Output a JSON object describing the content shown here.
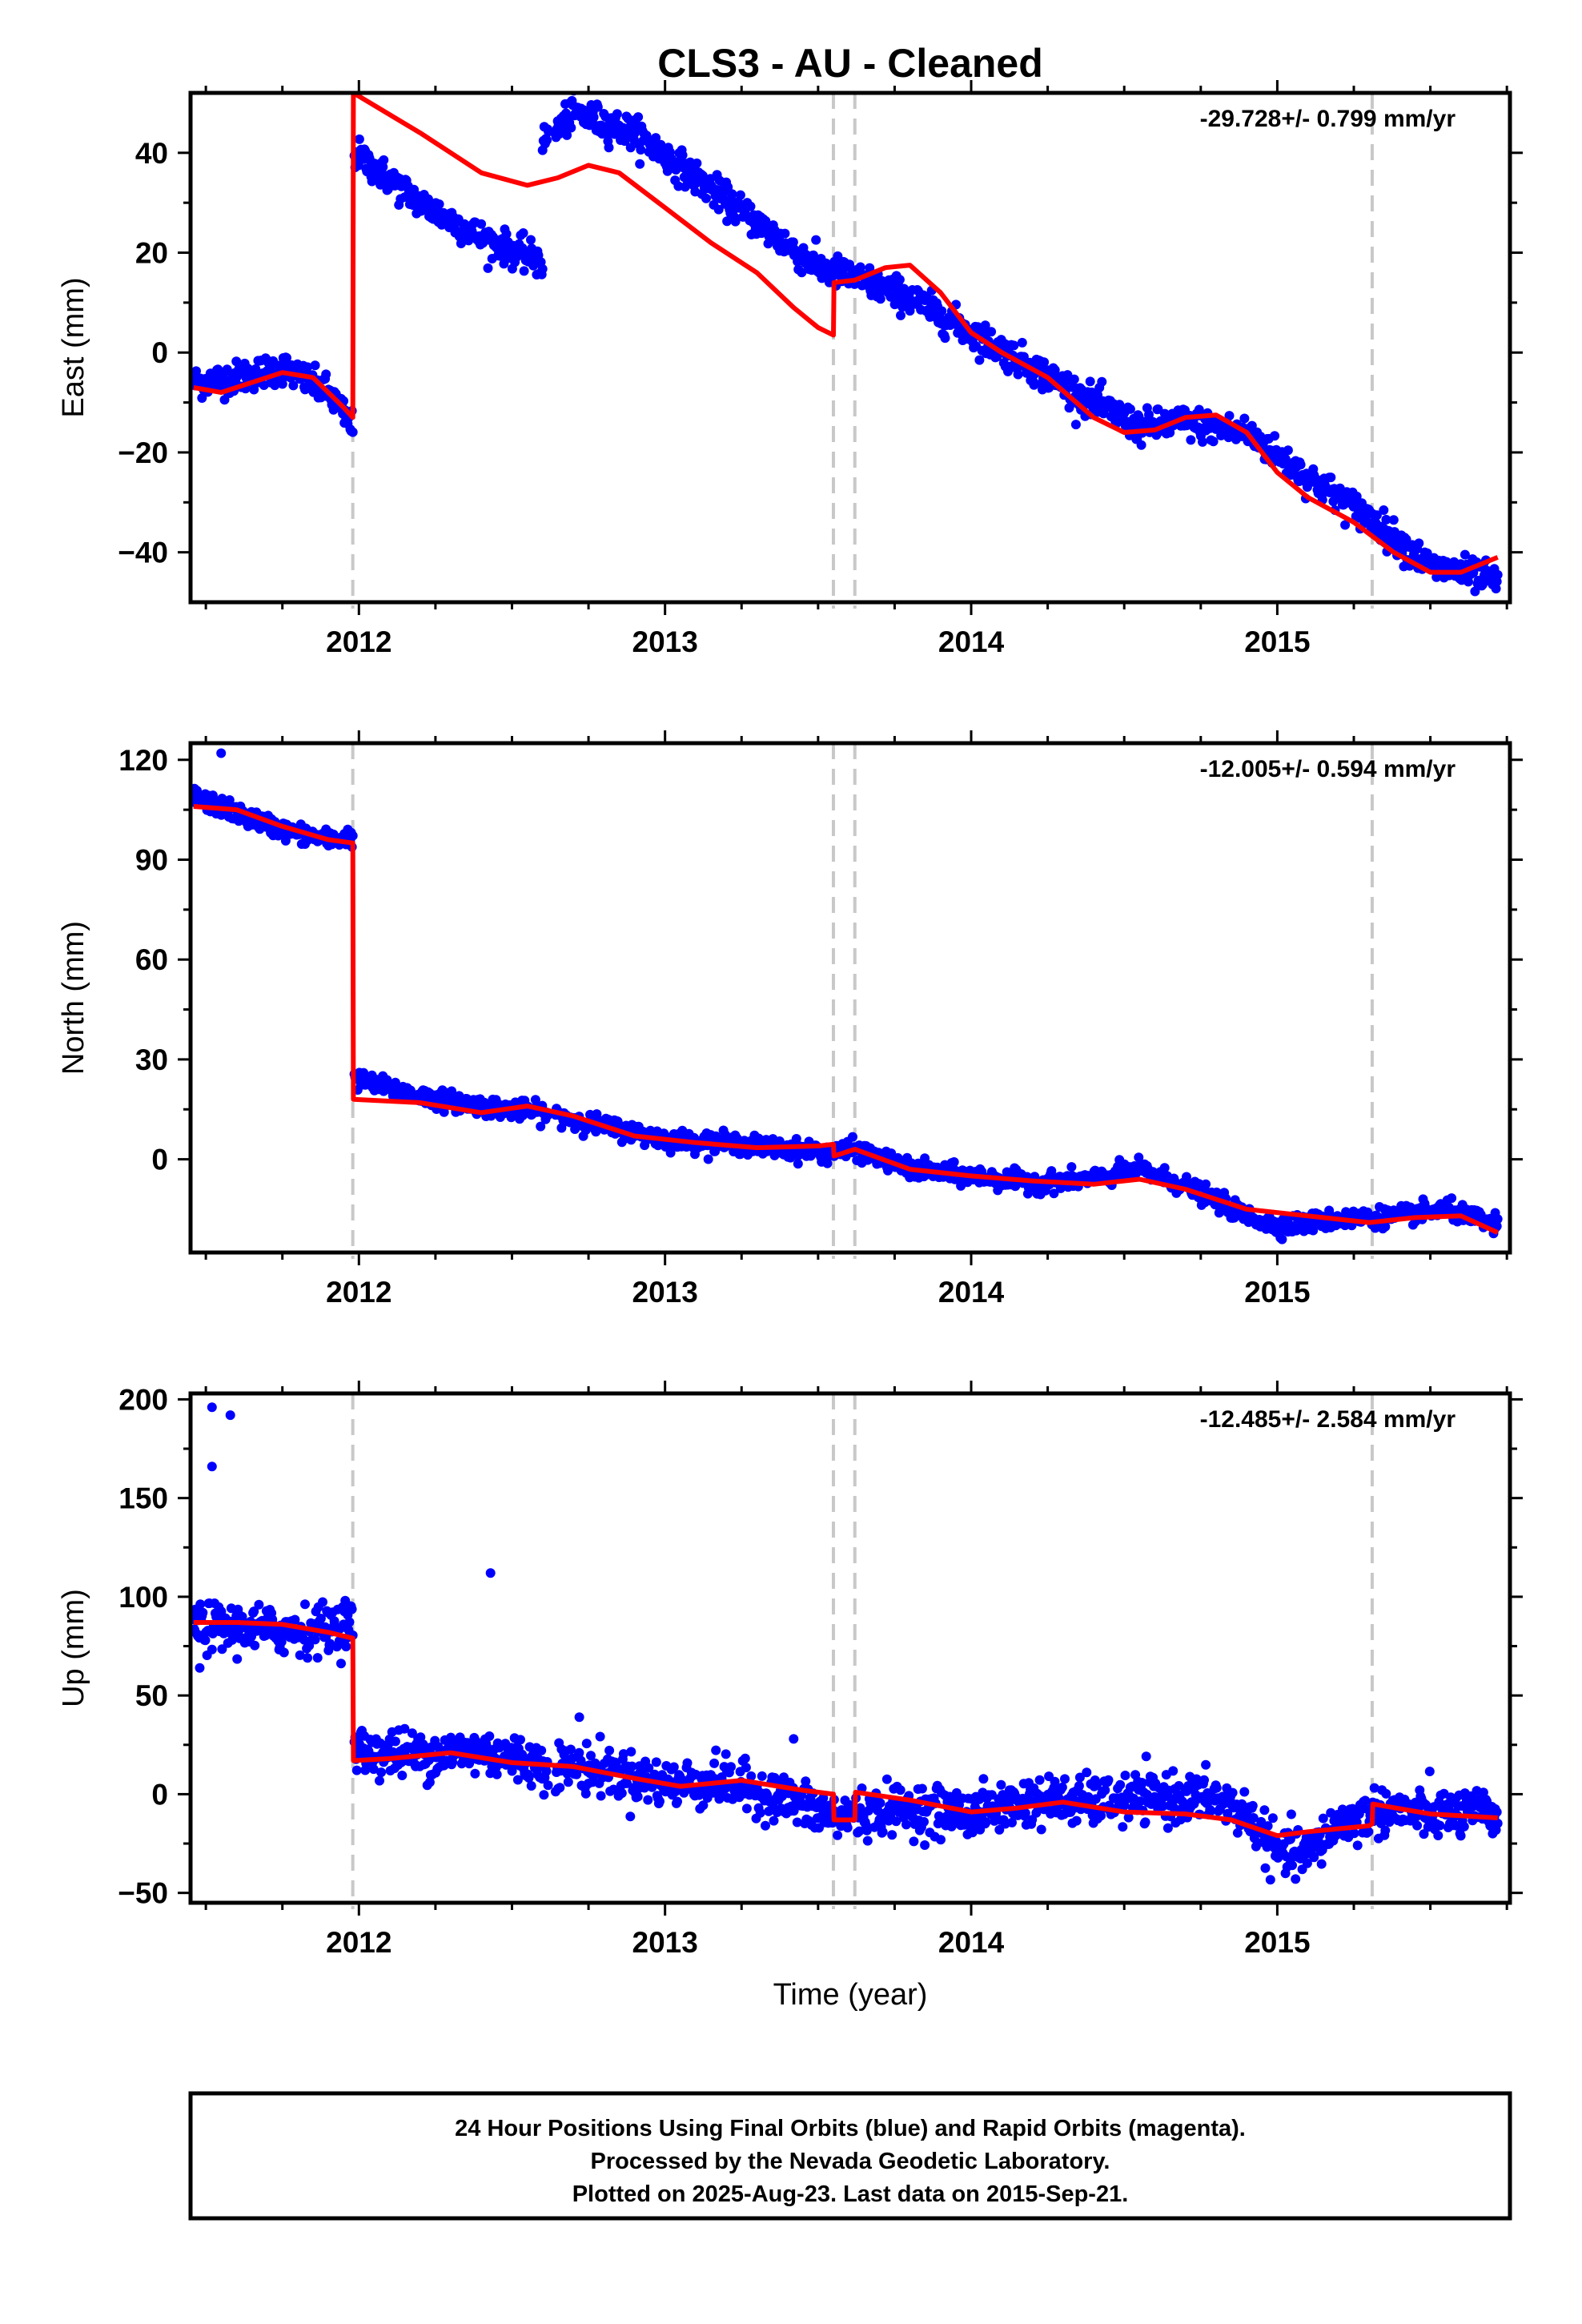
{
  "chart_data": {
    "title": "CLS3  - AU - Cleaned",
    "xlabel": "Time (year)",
    "xlim": [
      2011.45,
      2015.76
    ],
    "x_ticks": [
      2012,
      2013,
      2014,
      2015
    ],
    "x_tick_labels": [
      "2012",
      "2013",
      "2014",
      "2015"
    ],
    "breaks": [
      2011.98,
      2013.55,
      2013.62,
      2015.31
    ],
    "colors": {
      "data": "#0000ff",
      "model": "#ff0000",
      "breaks": "#c8c8c8"
    },
    "footer": {
      "line1": "24 Hour Positions Using Final Orbits (blue) and Rapid Orbits (magenta).",
      "line2": "Processed by the Nevada Geodetic Laboratory.",
      "line3": "Plotted on 2025-Aug-23. Last data on 2015-Sep-21."
    },
    "panels": [
      {
        "type": "scatter",
        "ylabel": "East (mm)",
        "ylim": [
          -50,
          52
        ],
        "y_ticks": [
          -40,
          -20,
          0,
          20,
          40
        ],
        "y_tick_labels": [
          "−40",
          "−20",
          "0",
          "20",
          "40"
        ],
        "rate_label": "-29.728+/- 0.799 mm/yr",
        "data_trend": [
          [
            2011.46,
            -6
          ],
          [
            2011.6,
            -5
          ],
          [
            2011.75,
            -3
          ],
          [
            2011.9,
            -8
          ],
          [
            2011.98,
            -15
          ],
          [
            2011.985,
            40
          ],
          [
            2012.2,
            30
          ],
          [
            2012.4,
            23
          ],
          [
            2012.6,
            18
          ],
          [
            2012.6,
            18
          ],
          [
            2012.6,
            42
          ],
          [
            2012.7,
            48
          ],
          [
            2012.9,
            44
          ],
          [
            2013.1,
            35
          ],
          [
            2013.3,
            26
          ],
          [
            2013.5,
            17
          ],
          [
            2013.62,
            15
          ],
          [
            2013.8,
            11
          ],
          [
            2014.0,
            4
          ],
          [
            2014.2,
            -3
          ],
          [
            2014.4,
            -10
          ],
          [
            2014.55,
            -15
          ],
          [
            2014.7,
            -14
          ],
          [
            2014.9,
            -16
          ],
          [
            2015.1,
            -25
          ],
          [
            2015.3,
            -33
          ],
          [
            2015.5,
            -43
          ],
          [
            2015.6,
            -44
          ],
          [
            2015.72,
            -46
          ]
        ],
        "data_noise": 1.6,
        "outliers": [],
        "model": [
          [
            2011.46,
            -7
          ],
          [
            2011.55,
            -8
          ],
          [
            2011.65,
            -6
          ],
          [
            2011.75,
            -4
          ],
          [
            2011.85,
            -5
          ],
          [
            2011.95,
            -11
          ],
          [
            2011.98,
            -13
          ],
          [
            2011.982,
            52
          ],
          [
            2012.2,
            44
          ],
          [
            2012.4,
            36
          ],
          [
            2012.55,
            33.5
          ],
          [
            2012.65,
            35
          ],
          [
            2012.75,
            37.5
          ],
          [
            2012.85,
            36
          ],
          [
            2013.0,
            29
          ],
          [
            2013.15,
            22
          ],
          [
            2013.3,
            16
          ],
          [
            2013.42,
            9
          ],
          [
            2013.5,
            5
          ],
          [
            2013.55,
            3.5
          ],
          [
            2013.552,
            14
          ],
          [
            2013.62,
            14.5
          ],
          [
            2013.72,
            17
          ],
          [
            2013.8,
            17.5
          ],
          [
            2013.9,
            12
          ],
          [
            2014.0,
            4
          ],
          [
            2014.1,
            0
          ],
          [
            2014.25,
            -5
          ],
          [
            2014.4,
            -13
          ],
          [
            2014.5,
            -16
          ],
          [
            2014.6,
            -15.5
          ],
          [
            2014.7,
            -13
          ],
          [
            2014.8,
            -12.5
          ],
          [
            2014.9,
            -16
          ],
          [
            2015.0,
            -24
          ],
          [
            2015.1,
            -29
          ],
          [
            2015.25,
            -34
          ],
          [
            2015.38,
            -40
          ],
          [
            2015.5,
            -44
          ],
          [
            2015.6,
            -44
          ],
          [
            2015.72,
            -41
          ]
        ]
      },
      {
        "type": "scatter",
        "ylabel": "North (mm)",
        "ylim": [
          -28,
          125
        ],
        "y_ticks": [
          0,
          30,
          60,
          90,
          120
        ],
        "y_tick_labels": [
          "0",
          "30",
          "60",
          "90",
          "120"
        ],
        "rate_label": "-12.005+/- 0.594 mm/yr",
        "data_trend": [
          [
            2011.46,
            109
          ],
          [
            2011.6,
            104
          ],
          [
            2011.75,
            99
          ],
          [
            2011.9,
            96
          ],
          [
            2011.98,
            97
          ],
          [
            2011.985,
            24
          ],
          [
            2012.2,
            19
          ],
          [
            2012.4,
            16
          ],
          [
            2012.6,
            14
          ],
          [
            2012.8,
            10
          ],
          [
            2013.0,
            6
          ],
          [
            2013.2,
            5
          ],
          [
            2013.4,
            3
          ],
          [
            2013.55,
            2
          ],
          [
            2013.62,
            3
          ],
          [
            2013.8,
            -3
          ],
          [
            2014.0,
            -5
          ],
          [
            2014.2,
            -7
          ],
          [
            2014.4,
            -6
          ],
          [
            2014.55,
            -3
          ],
          [
            2014.7,
            -8
          ],
          [
            2014.9,
            -17
          ],
          [
            2015.0,
            -20
          ],
          [
            2015.2,
            -18
          ],
          [
            2015.4,
            -17
          ],
          [
            2015.55,
            -15
          ],
          [
            2015.72,
            -20
          ]
        ],
        "data_noise": 1.4,
        "outliers": [
          [
            2011.55,
            122
          ]
        ],
        "model": [
          [
            2011.46,
            106
          ],
          [
            2011.6,
            105
          ],
          [
            2011.75,
            100
          ],
          [
            2011.9,
            96
          ],
          [
            2011.98,
            95
          ],
          [
            2011.982,
            18
          ],
          [
            2012.2,
            17
          ],
          [
            2012.4,
            14
          ],
          [
            2012.55,
            16
          ],
          [
            2012.7,
            13
          ],
          [
            2012.9,
            7
          ],
          [
            2013.1,
            5
          ],
          [
            2013.3,
            3.5
          ],
          [
            2013.5,
            4
          ],
          [
            2013.55,
            4.5
          ],
          [
            2013.552,
            1
          ],
          [
            2013.62,
            3
          ],
          [
            2013.8,
            -3
          ],
          [
            2014.0,
            -5
          ],
          [
            2014.2,
            -6.5
          ],
          [
            2014.4,
            -7.5
          ],
          [
            2014.55,
            -6
          ],
          [
            2014.7,
            -9
          ],
          [
            2014.9,
            -15
          ],
          [
            2015.1,
            -17
          ],
          [
            2015.3,
            -19
          ],
          [
            2015.45,
            -17.5
          ],
          [
            2015.6,
            -17
          ],
          [
            2015.72,
            -22
          ]
        ]
      },
      {
        "type": "scatter",
        "ylabel": "Up (mm)",
        "ylim": [
          -55,
          203
        ],
        "y_ticks": [
          -50,
          0,
          50,
          100,
          150,
          200
        ],
        "y_tick_labels": [
          "−50",
          "0",
          "50",
          "100",
          "150",
          "200"
        ],
        "rate_label": "-12.485+/- 2.584 mm/yr",
        "data_trend": [
          [
            2011.46,
            85
          ],
          [
            2011.6,
            84
          ],
          [
            2011.75,
            83
          ],
          [
            2011.9,
            84
          ],
          [
            2011.98,
            88
          ],
          [
            2011.985,
            22
          ],
          [
            2012.2,
            20
          ],
          [
            2012.4,
            22
          ],
          [
            2012.6,
            15
          ],
          [
            2012.8,
            12
          ],
          [
            2013.0,
            5
          ],
          [
            2013.2,
            6
          ],
          [
            2013.4,
            -3
          ],
          [
            2013.55,
            -12
          ],
          [
            2013.62,
            -10
          ],
          [
            2013.8,
            -7
          ],
          [
            2014.0,
            -10
          ],
          [
            2014.2,
            -3
          ],
          [
            2014.4,
            -4
          ],
          [
            2014.6,
            -2
          ],
          [
            2014.8,
            -2
          ],
          [
            2014.9,
            -10
          ],
          [
            2015.0,
            -30
          ],
          [
            2015.1,
            -30
          ],
          [
            2015.2,
            -15
          ],
          [
            2015.35,
            -8
          ],
          [
            2015.5,
            -10
          ],
          [
            2015.72,
            -10
          ]
        ],
        "data_noise": 6,
        "outliers": [
          [
            2011.52,
            196
          ],
          [
            2011.58,
            192
          ],
          [
            2011.52,
            166
          ],
          [
            2012.43,
            112
          ],
          [
            2011.48,
            64
          ],
          [
            2012.72,
            39
          ],
          [
            2013.42,
            28
          ]
        ],
        "model": [
          [
            2011.46,
            87
          ],
          [
            2011.6,
            87
          ],
          [
            2011.75,
            86
          ],
          [
            2011.9,
            82
          ],
          [
            2011.98,
            79
          ],
          [
            2011.982,
            17
          ],
          [
            2012.1,
            18
          ],
          [
            2012.3,
            21
          ],
          [
            2012.5,
            16
          ],
          [
            2012.7,
            14
          ],
          [
            2012.9,
            8
          ],
          [
            2013.05,
            4
          ],
          [
            2013.25,
            7
          ],
          [
            2013.45,
            2
          ],
          [
            2013.55,
            0
          ],
          [
            2013.552,
            -13
          ],
          [
            2013.62,
            -13
          ],
          [
            2013.622,
            1
          ],
          [
            2013.8,
            -3
          ],
          [
            2014.0,
            -9
          ],
          [
            2014.15,
            -7
          ],
          [
            2014.3,
            -4
          ],
          [
            2014.5,
            -9
          ],
          [
            2014.7,
            -10
          ],
          [
            2014.85,
            -13
          ],
          [
            2015.0,
            -21
          ],
          [
            2015.1,
            -19
          ],
          [
            2015.3,
            -16
          ],
          [
            2015.31,
            -15
          ],
          [
            2015.312,
            -5
          ],
          [
            2015.5,
            -10
          ],
          [
            2015.72,
            -12
          ]
        ]
      }
    ]
  }
}
